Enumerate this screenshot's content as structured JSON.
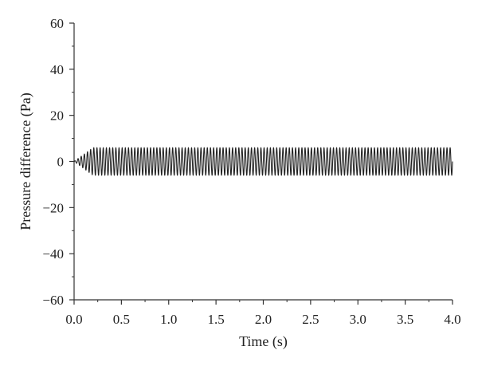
{
  "chart_data": {
    "type": "line",
    "xlabel": "Time (s)",
    "ylabel": "Pressure difference (Pa)",
    "xlim": [
      0,
      4.0
    ],
    "ylim": [
      -60,
      60
    ],
    "xticks": [
      0.0,
      0.5,
      1.0,
      1.5,
      2.0,
      2.5,
      3.0,
      3.5,
      4.0
    ],
    "xtick_labels": [
      "0.0",
      "0.5",
      "1.0",
      "1.5",
      "2.0",
      "2.5",
      "3.0",
      "3.5",
      "4.0"
    ],
    "yticks": [
      60,
      40,
      20,
      0,
      -20,
      -40,
      -60
    ],
    "ytick_labels": [
      "60",
      "40",
      "20",
      "0",
      "−20",
      "−40",
      "−60"
    ],
    "grid": false,
    "series": [
      {
        "color": "#222222",
        "description_values": {
          "signal": "sinusoidal oscillation",
          "amplitude_pa": 6,
          "mean_pa": 0,
          "frequency_hz": 30,
          "time_start_s": 0,
          "time_end_s": 4.0,
          "rise_time_s": 0.2
        }
      }
    ]
  }
}
